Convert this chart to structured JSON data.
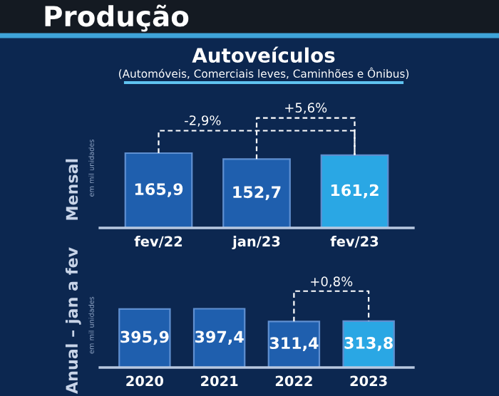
{
  "chart_data": [
    {
      "type": "bar",
      "title": "Produção",
      "subtitle": "Autoveículos",
      "ylabel": "Mensal",
      "categories": [
        "fev/22",
        "jan/23",
        "fev/23"
      ],
      "values": [
        165.9,
        152.7,
        161.2
      ],
      "value_labels": [
        "165,9",
        "152,7",
        "161,2"
      ],
      "colors": [
        "#1f5fae",
        "#1f5fae",
        "#2aa7e4"
      ],
      "tick_labels": "x",
      "annotations": [
        "(Automóveis, Comerciais leves, Caminhões e Ônibus)",
        "-2,9%",
        "+5,6%",
        "em mil unidades"
      ]
    },
    {
      "type": "bar",
      "ylabel": "Anual – jan a fev",
      "categories": [
        "2020",
        "2021",
        "2022",
        "2023"
      ],
      "values": [
        395.9,
        397.4,
        311.4,
        313.8
      ],
      "value_labels": [
        "395,9",
        "397,4",
        "311,4",
        "313,8"
      ],
      "colors": [
        "#1f5fae",
        "#1f5fae",
        "#1f5fae",
        "#2aa7e4"
      ],
      "tick_labels": "x",
      "annotations": [
        "+0,8%",
        "em mil unidades"
      ]
    }
  ]
}
